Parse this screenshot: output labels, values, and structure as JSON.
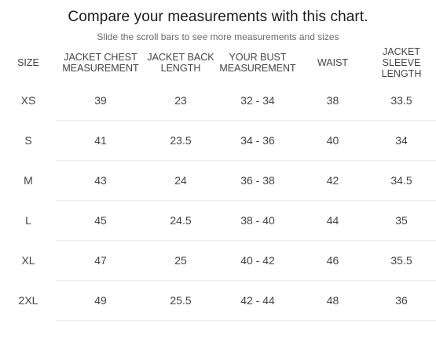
{
  "title": "Compare your measurements with this chart.",
  "subtitle": "Slide the scroll bars to see more measurements and sizes",
  "columns": [
    {
      "key": "size",
      "lines": [
        "SIZE"
      ]
    },
    {
      "key": "chest",
      "lines": [
        "JACKET CHEST",
        "MEASUREMENT"
      ]
    },
    {
      "key": "back",
      "lines": [
        "JACKET BACK",
        "LENGTH"
      ]
    },
    {
      "key": "bust",
      "lines": [
        "YOUR BUST",
        "MEASUREMENT"
      ]
    },
    {
      "key": "waist",
      "lines": [
        "WAIST"
      ]
    },
    {
      "key": "sleeve",
      "lines": [
        "JACKET",
        "SLEEVE",
        "LENGTH"
      ]
    }
  ],
  "rows": [
    [
      "XS",
      "39",
      "23",
      "32 - 34",
      "38",
      "33.5"
    ],
    [
      "S",
      "41",
      "23.5",
      "34 - 36",
      "40",
      "34"
    ],
    [
      "M",
      "43",
      "24",
      "36 - 38",
      "42",
      "34.5"
    ],
    [
      "L",
      "45",
      "24.5",
      "38 - 40",
      "44",
      "35"
    ],
    [
      "XL",
      "47",
      "25",
      "40 - 42",
      "46",
      "35.5"
    ],
    [
      "2XL",
      "49",
      "25.5",
      "42 - 44",
      "48",
      "36"
    ]
  ]
}
